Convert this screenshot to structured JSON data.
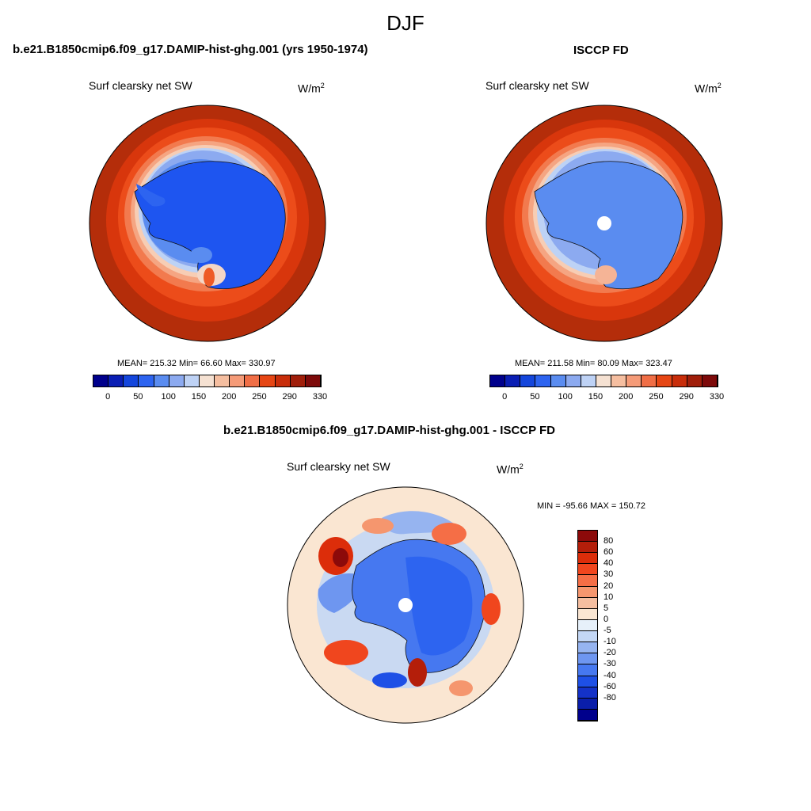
{
  "season": "DJF",
  "left_panel": {
    "title": "b.e21.B1850cmip6.f09_g17.DAMIP-hist-ghg.001 (yrs 1950-1974)",
    "field": "Surf clearsky net SW",
    "units": "W/m",
    "units_exp": "2",
    "stats": "MEAN= 215.32  Min=  66.60  Max= 330.97"
  },
  "right_panel": {
    "title": "ISCCP FD",
    "field": "Surf clearsky net SW",
    "units": "W/m",
    "units_exp": "2",
    "stats": "MEAN= 211.58  Min=  80.09  Max= 323.47"
  },
  "diff_panel": {
    "title": "b.e21.B1850cmip6.f09_g17.DAMIP-hist-ghg.001 - ISCCP FD",
    "field": "Surf clearsky net SW",
    "units": "W/m",
    "units_exp": "2",
    "stats": "MIN = -95.66 MAX = 150.72"
  },
  "colorbar_top": {
    "colors": [
      "#00008c",
      "#0a1eb4",
      "#1446dc",
      "#2d64f0",
      "#5a8cf0",
      "#8caaf0",
      "#bed2f5",
      "#f5e1d2",
      "#f5bea0",
      "#f59b78",
      "#f06e46",
      "#e64614",
      "#c82d0a",
      "#a01e0a",
      "#7d0a0a"
    ],
    "labels": [
      "0",
      "50",
      "100",
      "150",
      "200",
      "250",
      "290",
      "330"
    ]
  },
  "colorbar_diff": {
    "colors_top_to_bottom": [
      "#8c0a0a",
      "#b41e0a",
      "#dc2d0a",
      "#f0461e",
      "#f56e46",
      "#f5966e",
      "#f5bea0",
      "#fae6d2",
      "#e6f0fa",
      "#c3d7f5",
      "#96b4f0",
      "#6e96f0",
      "#4678f0",
      "#1e50e6",
      "#1432c8",
      "#0a1eaa",
      "#00008c"
    ],
    "labels_top_to_bottom": [
      "80",
      "60",
      "40",
      "30",
      "20",
      "10",
      "5",
      "0",
      "-5",
      "-10",
      "-20",
      "-30",
      "-40",
      "-60",
      "-80"
    ]
  }
}
